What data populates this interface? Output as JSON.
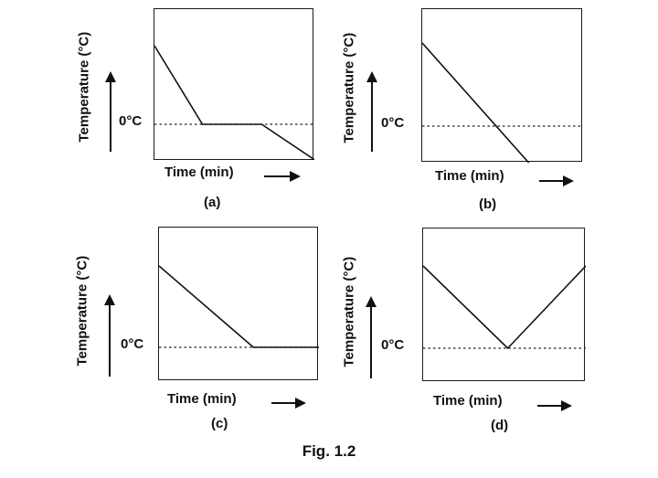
{
  "figure": {
    "caption": "Fig. 1.2"
  },
  "chart_data": [
    {
      "type": "line",
      "panel_label": "(a)",
      "xlabel": "Time (min)",
      "ylabel": "Temperature (°C)",
      "ytick_label": "0°C",
      "x": [
        0,
        0.3,
        0.67,
        1.0
      ],
      "y": [
        1.0,
        0.0,
        0.0,
        -0.45
      ],
      "reference_line": {
        "y": 0,
        "style": "dotted"
      }
    },
    {
      "type": "line",
      "panel_label": "(b)",
      "xlabel": "Time (min)",
      "ylabel": "Temperature (°C)",
      "ytick_label": "0°C",
      "x": [
        0,
        0.69
      ],
      "y": [
        1.0,
        -0.5
      ],
      "reference_line": {
        "y": 0,
        "style": "dotted"
      }
    },
    {
      "type": "line",
      "panel_label": "(c)",
      "xlabel": "Time (min)",
      "ylabel": "Temperature (°C)",
      "ytick_label": "0°C",
      "x": [
        0,
        0.59,
        1.0
      ],
      "y": [
        1.0,
        0.0,
        0.0
      ],
      "reference_line": {
        "y": 0,
        "style": "dotted"
      }
    },
    {
      "type": "line",
      "panel_label": "(d)",
      "xlabel": "Time (min)",
      "ylabel": "Temperature (°C)",
      "ytick_label": "0°C",
      "x": [
        0,
        0.52,
        1.0
      ],
      "y": [
        1.0,
        0.0,
        1.0
      ],
      "reference_line": {
        "y": 0,
        "style": "dotted"
      }
    }
  ]
}
